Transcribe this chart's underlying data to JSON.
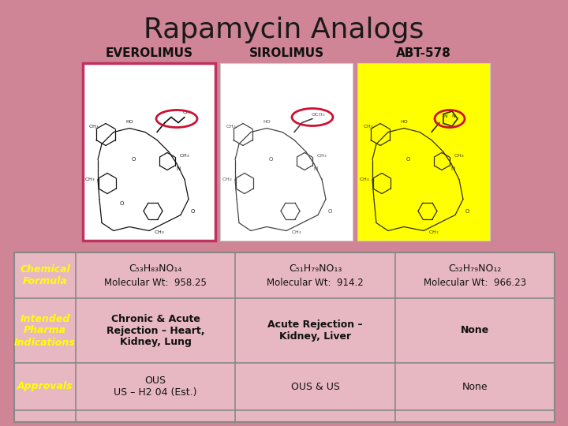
{
  "title": "Rapamycin Analogs",
  "title_fontsize": 26,
  "title_color": "#1a1a1a",
  "bg_color": "#cf8596",
  "compound_names": [
    "EVEROLIMUS",
    "SIROLIMUS",
    "ABT-578"
  ],
  "compound_name_fontsize": 11,
  "compound_name_color": "#111111",
  "everolimus_box_color": "#c03060",
  "everolimus_bg": "#ffffff",
  "sirolimus_bg": "#ffffff",
  "abt578_bg": "#ffff00",
  "table_bg": "#e8b8c2",
  "table_border_color": "#888888",
  "row_labels": [
    "Chemical\nFormula",
    "Intended\nPharma\nIndications",
    "Approvals"
  ],
  "row_label_color": "#ffff00",
  "row_label_fontsize": 9,
  "formula_row_line1": [
    "C₅₃H₈₃NO₁₄",
    "C₅₁H₇₉NO₁₃",
    "C₅₂H₇₉NO₁₂"
  ],
  "formula_row_line2": [
    "Molecular Wt:  958.25",
    "Molecular Wt:  914.2",
    "Molecular Wt:  966.23"
  ],
  "pharma_row": [
    "Chronic & Acute\nRejection – Heart,\nKidney, Lung",
    "Acute Rejection –\nKidney, Liver",
    "None"
  ],
  "approvals_row": [
    "OUS\nUS – H2 04 (Est.)",
    "OUS & US",
    "None"
  ],
  "table_text_fontsize": 9,
  "table_text_color": "#111111",
  "highlight_color": "#cc1133",
  "struct_color_evr": "#111111",
  "struct_color_siro": "#444444",
  "struct_color_abt": "#333300"
}
